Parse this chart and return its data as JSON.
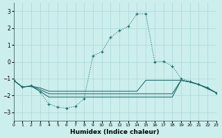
{
  "xlabel": "Humidex (Indice chaleur)",
  "bg_color": "#cceeed",
  "grid_color": "#aad8d5",
  "line_color": "#1a6b68",
  "xlim": [
    0,
    23
  ],
  "ylim": [
    -3.5,
    3.5
  ],
  "yticks": [
    -3,
    -2,
    -1,
    0,
    1,
    2,
    3
  ],
  "xticks": [
    0,
    1,
    2,
    3,
    4,
    5,
    6,
    7,
    8,
    9,
    10,
    11,
    12,
    13,
    14,
    15,
    16,
    17,
    18,
    19,
    20,
    21,
    22,
    23
  ],
  "main_x": [
    0,
    1,
    2,
    3,
    4,
    5,
    6,
    7,
    8,
    9,
    10,
    11,
    12,
    13,
    14,
    15,
    16,
    17,
    18,
    19,
    20,
    21,
    22,
    23
  ],
  "main_y": [
    -1.1,
    -1.5,
    -1.4,
    -1.8,
    -2.5,
    -2.7,
    -2.75,
    -2.65,
    -2.2,
    0.35,
    0.6,
    1.45,
    1.85,
    2.1,
    2.85,
    2.85,
    0.0,
    0.02,
    -0.25,
    -1.0,
    -1.15,
    -1.35,
    -1.55,
    -1.85
  ],
  "band1_x": [
    0,
    1,
    2,
    3,
    4,
    5,
    6,
    7,
    8,
    9,
    10,
    11,
    12,
    13,
    14,
    15,
    16,
    17,
    18,
    19,
    20,
    21,
    22,
    23
  ],
  "band1_y": [
    -1.1,
    -1.5,
    -1.45,
    -1.55,
    -1.75,
    -1.75,
    -1.75,
    -1.75,
    -1.75,
    -1.75,
    -1.75,
    -1.75,
    -1.75,
    -1.75,
    -1.75,
    -1.1,
    -1.1,
    -1.1,
    -1.1,
    -1.1,
    -1.2,
    -1.35,
    -1.55,
    -1.85
  ],
  "band2_x": [
    0,
    1,
    2,
    3,
    4,
    5,
    6,
    7,
    8,
    9,
    10,
    11,
    12,
    13,
    14,
    15,
    16,
    17,
    18,
    19,
    20,
    21,
    22,
    23
  ],
  "band2_y": [
    -1.1,
    -1.5,
    -1.45,
    -1.65,
    -1.9,
    -1.9,
    -1.9,
    -1.9,
    -1.9,
    -1.9,
    -1.9,
    -1.9,
    -1.9,
    -1.9,
    -1.9,
    -1.9,
    -1.9,
    -1.9,
    -1.9,
    -1.1,
    -1.2,
    -1.35,
    -1.55,
    -1.85
  ],
  "band3_x": [
    0,
    1,
    2,
    3,
    4,
    5,
    6,
    7,
    8,
    9,
    10,
    11,
    12,
    13,
    14,
    15,
    16,
    17,
    18,
    19,
    20,
    21,
    22,
    23
  ],
  "band3_y": [
    -1.1,
    -1.5,
    -1.45,
    -1.75,
    -2.1,
    -2.1,
    -2.1,
    -2.1,
    -2.1,
    -2.1,
    -2.1,
    -2.1,
    -2.1,
    -2.1,
    -2.1,
    -2.1,
    -2.1,
    -2.1,
    -2.1,
    -1.1,
    -1.2,
    -1.35,
    -1.6,
    -1.85
  ]
}
